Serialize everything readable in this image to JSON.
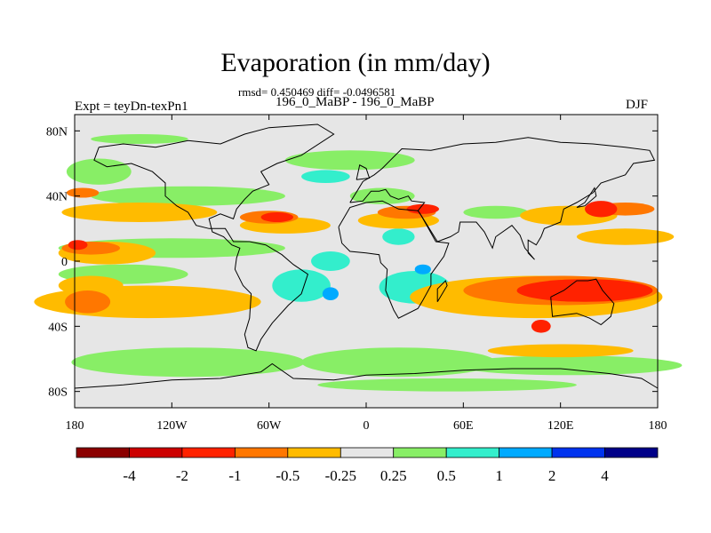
{
  "title": "Evaporation (in mm/day)",
  "stats": "rmsd= 0.450469 diff= -0.0496581",
  "comparison": "196_0_MaBP - 196_0_MaBP",
  "expt": "Expt = teyDn-texPn1",
  "season": "DJF",
  "map": {
    "projection": "cylindrical-equidistant",
    "lon_range": [
      -180,
      180
    ],
    "lat_range": [
      -90,
      90
    ],
    "land_color": "#e6e6e6",
    "coastline_color": "#000000",
    "x_ticks": [
      {
        "lon": -180,
        "label": "180"
      },
      {
        "lon": -120,
        "label": "120W"
      },
      {
        "lon": -60,
        "label": "60W"
      },
      {
        "lon": 0,
        "label": "0"
      },
      {
        "lon": 60,
        "label": "60E"
      },
      {
        "lon": 120,
        "label": "120E"
      },
      {
        "lon": 180,
        "label": "180"
      }
    ],
    "y_ticks": [
      {
        "lat": 80,
        "label": "80N"
      },
      {
        "lat": 40,
        "label": "40N"
      },
      {
        "lat": 0,
        "label": "0"
      },
      {
        "lat": -40,
        "label": "40S"
      },
      {
        "lat": -80,
        "label": "80S"
      }
    ]
  },
  "colorbar": {
    "colors": [
      "#8b0000",
      "#cc0000",
      "#ff2200",
      "#ff7700",
      "#ffbb00",
      "#e6e6e6",
      "#88ee66",
      "#33eecc",
      "#00aaff",
      "#0033ee",
      "#000088"
    ],
    "labels": [
      "-4",
      "-2",
      "-1",
      "-0.5",
      "-0.25",
      "0.25",
      "0.5",
      "1",
      "2",
      "4"
    ]
  }
}
